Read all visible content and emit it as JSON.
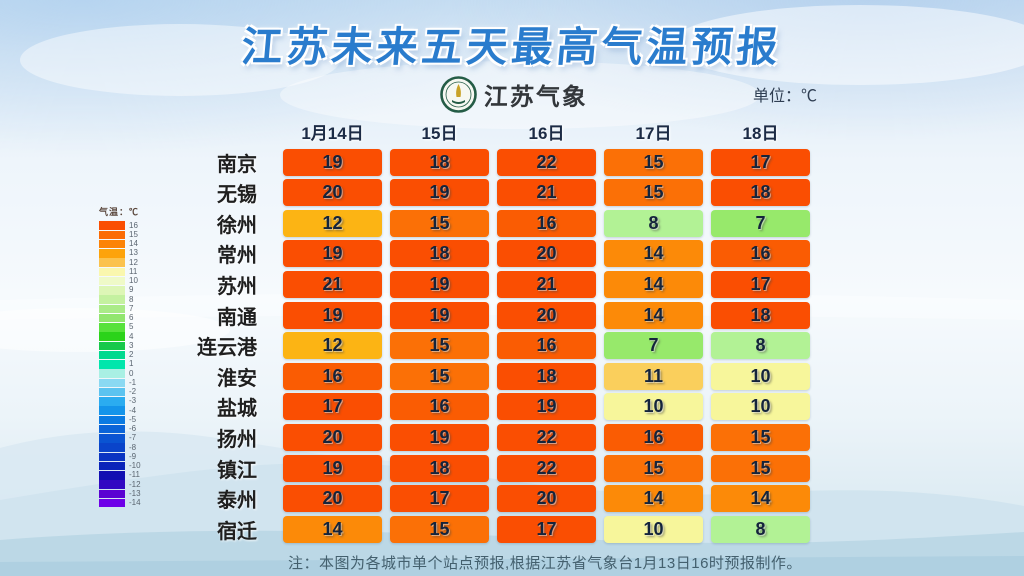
{
  "header": {
    "title": "江苏未来五天最高气温预报",
    "logo_text": "江苏气象",
    "unit_label": "单位：℃"
  },
  "legend": {
    "title": "气温：℃",
    "items": [
      {
        "t": "16",
        "color": "#FA4E02"
      },
      {
        "t": "15",
        "color": "#FB6B04"
      },
      {
        "t": "14",
        "color": "#FC8307"
      },
      {
        "t": "13",
        "color": "#FDA30B"
      },
      {
        "t": "12",
        "color": "#FBC24D"
      },
      {
        "t": "11",
        "color": "#FAF7AE"
      },
      {
        "t": "10",
        "color": "#EFFAC8"
      },
      {
        "t": "9",
        "color": "#DDF6B6"
      },
      {
        "t": "8",
        "color": "#C4F1A0"
      },
      {
        "t": "7",
        "color": "#AAEB88"
      },
      {
        "t": "6",
        "color": "#92E66F"
      },
      {
        "t": "5",
        "color": "#57E23C"
      },
      {
        "t": "4",
        "color": "#2BD31A"
      },
      {
        "t": "3",
        "color": "#17C94A"
      },
      {
        "t": "2",
        "color": "#00D98F"
      },
      {
        "t": "1",
        "color": "#00E6AC"
      },
      {
        "t": "0",
        "color": "#A9F0E4"
      },
      {
        "t": "-1",
        "color": "#8AD9F2"
      },
      {
        "t": "-2",
        "color": "#5BC3F0"
      },
      {
        "t": "-3",
        "color": "#2BACF0"
      },
      {
        "t": "-4",
        "color": "#1494EA"
      },
      {
        "t": "-5",
        "color": "#0A7AE2"
      },
      {
        "t": "-6",
        "color": "#0A64D8"
      },
      {
        "t": "-7",
        "color": "#0A54D2"
      },
      {
        "t": "-8",
        "color": "#0A44CA"
      },
      {
        "t": "-9",
        "color": "#0A34C2"
      },
      {
        "t": "-10",
        "color": "#0A24BA"
      },
      {
        "t": "-11",
        "color": "#120FB2"
      },
      {
        "t": "-12",
        "color": "#3208C2"
      },
      {
        "t": "-13",
        "color": "#5A02D2"
      },
      {
        "t": "-14",
        "color": "#6E00E8"
      }
    ]
  },
  "colors": {
    "temp_map": {
      "22": "#FA4E02",
      "21": "#FA4E02",
      "20": "#FA4E02",
      "19": "#FA4E02",
      "18": "#FA4E02",
      "17": "#FA4E02",
      "16": "#FA5C03",
      "15": "#FB7006",
      "14": "#FC8A08",
      "12": "#FCB414",
      "11": "#FACF5C",
      "10": "#F7F69B",
      "8": "#B2F295",
      "7": "#97E96B"
    },
    "title_blue": "#2A7CCD"
  },
  "table": {
    "dates": [
      "1月14日",
      "15日",
      "16日",
      "17日",
      "18日"
    ],
    "rows": [
      {
        "city": "南京",
        "temps": [
          19,
          18,
          22,
          15,
          17
        ]
      },
      {
        "city": "无锡",
        "temps": [
          20,
          19,
          21,
          15,
          18
        ]
      },
      {
        "city": "徐州",
        "temps": [
          12,
          15,
          16,
          8,
          7
        ]
      },
      {
        "city": "常州",
        "temps": [
          19,
          18,
          20,
          14,
          16
        ]
      },
      {
        "city": "苏州",
        "temps": [
          21,
          19,
          21,
          14,
          17
        ]
      },
      {
        "city": "南通",
        "temps": [
          19,
          19,
          20,
          14,
          18
        ]
      },
      {
        "city": "连云港",
        "temps": [
          12,
          15,
          16,
          7,
          8
        ]
      },
      {
        "city": "淮安",
        "temps": [
          16,
          15,
          18,
          11,
          10
        ]
      },
      {
        "city": "盐城",
        "temps": [
          17,
          16,
          19,
          10,
          10
        ]
      },
      {
        "city": "扬州",
        "temps": [
          20,
          19,
          22,
          16,
          15
        ]
      },
      {
        "city": "镇江",
        "temps": [
          19,
          18,
          22,
          15,
          15
        ]
      },
      {
        "city": "泰州",
        "temps": [
          20,
          17,
          20,
          14,
          14
        ]
      },
      {
        "city": "宿迁",
        "temps": [
          14,
          15,
          17,
          10,
          8
        ]
      }
    ]
  },
  "footer": {
    "note": "注：本图为各城市单个站点预报,根据江苏省气象台1月13日16时预报制作。"
  },
  "chart_data": {
    "type": "heatmap",
    "title": "江苏未来五天最高气温预报",
    "unit": "℃",
    "x": [
      "1月14日",
      "15日",
      "16日",
      "17日",
      "18日"
    ],
    "y": [
      "南京",
      "无锡",
      "徐州",
      "常州",
      "苏州",
      "南通",
      "连云港",
      "淮安",
      "盐城",
      "扬州",
      "镇江",
      "泰州",
      "宿迁"
    ],
    "values": [
      [
        19,
        18,
        22,
        15,
        17
      ],
      [
        20,
        19,
        21,
        15,
        18
      ],
      [
        12,
        15,
        16,
        8,
        7
      ],
      [
        19,
        18,
        20,
        14,
        16
      ],
      [
        21,
        19,
        21,
        14,
        17
      ],
      [
        19,
        19,
        20,
        14,
        18
      ],
      [
        12,
        15,
        16,
        7,
        8
      ],
      [
        16,
        15,
        18,
        11,
        10
      ],
      [
        17,
        16,
        19,
        10,
        10
      ],
      [
        20,
        19,
        22,
        16,
        15
      ],
      [
        19,
        18,
        22,
        15,
        15
      ],
      [
        20,
        17,
        20,
        14,
        14
      ],
      [
        14,
        15,
        17,
        10,
        8
      ]
    ],
    "colorbar": {
      "label": "气温：℃",
      "min": -14,
      "max": 16
    },
    "note": "注：本图为各城市单个站点预报,根据江苏省气象台1月13日16时预报制作。"
  }
}
